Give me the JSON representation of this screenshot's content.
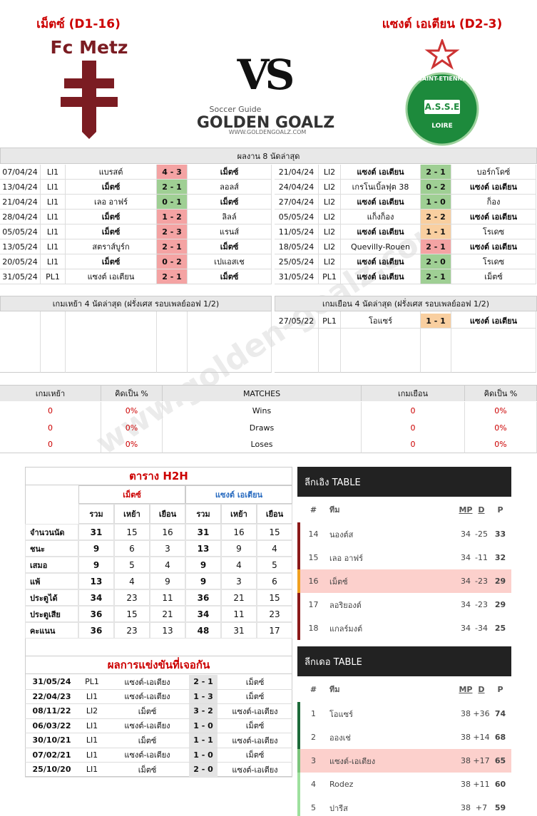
{
  "header": {
    "home_title": "เม็ตซ์ (D1-16)",
    "away_title": "แซงต์ เอเตียน (D2-3)",
    "home_logo": "Fc Metz",
    "vs": "VS",
    "brand_sub": "Soccer Guide",
    "brand": "GOLDEN GOALZ",
    "brand_url": "WWW.GOLDENGOALZ.COM",
    "away_logo": {
      "top": "SAINT-ETIENNE",
      "middle": "A.S.S.E",
      "bottom": "LOIRE"
    }
  },
  "watermark": "www.golden-goalz.com",
  "recent": {
    "title": "ผลงาน 8 นัดล่าสุด",
    "home": [
      {
        "date": "07/04/24",
        "league": "LI1",
        "home": "แบรสต์",
        "score": "4 - 3",
        "away": "เม็ตซ์",
        "color": "#f4a3a3"
      },
      {
        "date": "13/04/24",
        "league": "LI1",
        "home": "เม็ตซ์",
        "score": "2 - 1",
        "away": "ลอลส์",
        "color": "#9fcf94"
      },
      {
        "date": "21/04/24",
        "league": "LI1",
        "home": "เลอ อาฟร์",
        "score": "0 - 1",
        "away": "เม็ตซ์",
        "color": "#9fcf94"
      },
      {
        "date": "28/04/24",
        "league": "LI1",
        "home": "เม็ตซ์",
        "score": "1 - 2",
        "away": "ลิลล์",
        "color": "#f4a3a3"
      },
      {
        "date": "05/05/24",
        "league": "LI1",
        "home": "เม็ตซ์",
        "score": "2 - 3",
        "away": "แรนส์",
        "color": "#f4a3a3"
      },
      {
        "date": "13/05/24",
        "league": "LI1",
        "home": "สตราส์บูร์ก",
        "score": "2 - 1",
        "away": "เม็ตซ์",
        "color": "#f4a3a3"
      },
      {
        "date": "20/05/24",
        "league": "LI1",
        "home": "เม็ตซ์",
        "score": "0 - 2",
        "away": "เปแอสเช",
        "color": "#f4a3a3"
      },
      {
        "date": "31/05/24",
        "league": "PL1",
        "home": "แซงต์ เอเตียน",
        "score": "2 - 1",
        "away": "เม็ตซ์",
        "color": "#f4a3a3"
      }
    ],
    "away": [
      {
        "date": "21/04/24",
        "league": "LI2",
        "home": "แซงต์ เอเตียน",
        "score": "2 - 1",
        "away": "บอร์กโดซ์",
        "color": "#9fcf94"
      },
      {
        "date": "24/04/24",
        "league": "LI2",
        "home": "เกรโนเบิ้ลฟุต 38",
        "score": "0 - 2",
        "away": "แซงต์ เอเตียน",
        "color": "#9fcf94"
      },
      {
        "date": "27/04/24",
        "league": "LI2",
        "home": "แซงต์ เอเตียน",
        "score": "1 - 0",
        "away": "ก็อง",
        "color": "#9fcf94"
      },
      {
        "date": "05/05/24",
        "league": "LI2",
        "home": "แก็งก็อง",
        "score": "2 - 2",
        "away": "แซงต์ เอเตียน",
        "color": "#f9cfa0"
      },
      {
        "date": "11/05/24",
        "league": "LI2",
        "home": "แซงต์ เอเตียน",
        "score": "1 - 1",
        "away": "โรเดซ",
        "color": "#f9cfa0"
      },
      {
        "date": "18/05/24",
        "league": "LI2",
        "home": "Quevilly-Rouen",
        "score": "2 - 1",
        "away": "แซงต์ เอเตียน",
        "color": "#f4a3a3"
      },
      {
        "date": "25/05/24",
        "league": "LI2",
        "home": "แซงต์ เอเตียน",
        "score": "2 - 0",
        "away": "โรเดซ",
        "color": "#9fcf94"
      },
      {
        "date": "31/05/24",
        "league": "PL1",
        "home": "แซงต์ เอเตียน",
        "score": "2 - 1",
        "away": "เม็ตซ์",
        "color": "#9fcf94"
      }
    ]
  },
  "playoff": {
    "home_title": "เกมเหย้า 4 นัดล่าสุด (ฝรั่งเศส รอบเพลย์ออฟ 1/2)",
    "away_title": "เกมเยือน 4 นัดล่าสุด (ฝรั่งเศส รอบเพลย์ออฟ 1/2)",
    "away": [
      {
        "date": "27/05/22",
        "league": "PL1",
        "home": "โอแซร์",
        "score": "1 - 1",
        "away": "แซงต์ เอเตียน",
        "color": "#f9cfa0"
      }
    ]
  },
  "summary": {
    "headers": [
      "เกมเหย้า",
      "คิดเป็น %",
      "MATCHES",
      "เกมเยือน",
      "คิดเป็น %"
    ],
    "rows": [
      [
        "0",
        "0%",
        "Wins",
        "0",
        "0%"
      ],
      [
        "0",
        "0%",
        "Draws",
        "0",
        "0%"
      ],
      [
        "0",
        "0%",
        "Loses",
        "0",
        "0%"
      ]
    ]
  },
  "h2h": {
    "title": "ตาราง H2H",
    "teams": [
      "เม็ตซ์",
      "แซงต์ เอเตียน"
    ],
    "subheads": [
      "รวม",
      "เหย้า",
      "เยือน",
      "รวม",
      "เหย้า",
      "เยือน"
    ],
    "rows": [
      [
        "จำนวนนัด",
        "31",
        "15",
        "16",
        "31",
        "16",
        "15"
      ],
      [
        "ชนะ",
        "9",
        "6",
        "3",
        "13",
        "9",
        "4"
      ],
      [
        "เสมอ",
        "9",
        "5",
        "4",
        "9",
        "4",
        "5"
      ],
      [
        "แพ้",
        "13",
        "4",
        "9",
        "9",
        "3",
        "6"
      ],
      [
        "ประตูได้",
        "34",
        "23",
        "11",
        "36",
        "21",
        "15"
      ],
      [
        "ประตูเสีย",
        "36",
        "15",
        "21",
        "34",
        "11",
        "23"
      ],
      [
        "คะแนน",
        "36",
        "23",
        "13",
        "48",
        "31",
        "17"
      ]
    ]
  },
  "meetings": {
    "title": "ผลการแข่งขันที่เจอกัน",
    "rows": [
      [
        "31/05/24",
        "PL1",
        "แซงต์-เอเตียง",
        "2 - 1",
        "เม็ตซ์"
      ],
      [
        "22/04/23",
        "LI1",
        "แซงต์-เอเตียง",
        "1 - 3",
        "เม็ตซ์"
      ],
      [
        "08/11/22",
        "LI2",
        "เม็ตซ์",
        "3 - 2",
        "แซงต์-เอเตียง"
      ],
      [
        "06/03/22",
        "LI1",
        "แซงต์-เอเตียง",
        "1 - 0",
        "เม็ตซ์"
      ],
      [
        "30/10/21",
        "LI1",
        "เม็ตซ์",
        "1 - 1",
        "แซงต์-เอเตียง"
      ],
      [
        "07/02/21",
        "LI1",
        "แซงต์-เอเตียง",
        "1 - 0",
        "เม็ตซ์"
      ],
      [
        "25/10/20",
        "LI1",
        "เม็ตซ์",
        "2 - 0",
        "แซงต์-เอเตียง"
      ]
    ]
  },
  "leagues": [
    {
      "title": "ลีกเอิง TABLE",
      "headers": [
        "#",
        "ทีม",
        "MP",
        "D",
        "P"
      ],
      "highlight": "#fcd0cc",
      "rows": [
        {
          "cells": [
            "14",
            "นองต์ส",
            "34",
            "-25",
            "33"
          ],
          "border": "#8b1a1a"
        },
        {
          "cells": [
            "15",
            "เลอ อาฟร์",
            "34",
            "-11",
            "32"
          ],
          "border": "#8b1a1a"
        },
        {
          "cells": [
            "16",
            "เม็ตซ์",
            "34",
            "-23",
            "29"
          ],
          "border": "#f0a020",
          "hl": true
        },
        {
          "cells": [
            "17",
            "ลอริยองต์",
            "34",
            "-23",
            "29"
          ],
          "border": "#8b1a1a"
        },
        {
          "cells": [
            "18",
            "แกลร์มงต์",
            "34",
            "-34",
            "25"
          ],
          "border": "#8b1a1a"
        }
      ]
    },
    {
      "title": "ลีกเดอ TABLE",
      "headers": [
        "#",
        "ทีม",
        "MP",
        "D",
        "P"
      ],
      "highlight": "#fcd0cc",
      "rows": [
        {
          "cells": [
            "1",
            "โอแซร์",
            "38",
            "+36",
            "74"
          ],
          "border": "#1e6b3a"
        },
        {
          "cells": [
            "2",
            "อองเช่",
            "38",
            "+14",
            "68"
          ],
          "border": "#1e6b3a"
        },
        {
          "cells": [
            "3",
            "แซงต์-เอเตียง",
            "38",
            "+17",
            "65"
          ],
          "border": "#7cc47c",
          "hl": true
        },
        {
          "cells": [
            "4",
            "Rodez",
            "38",
            "+11",
            "60"
          ],
          "border": "#9ee09e"
        },
        {
          "cells": [
            "5",
            "ปารีส",
            "38",
            "+7",
            "59"
          ],
          "border": "#9ee09e"
        }
      ]
    }
  ]
}
